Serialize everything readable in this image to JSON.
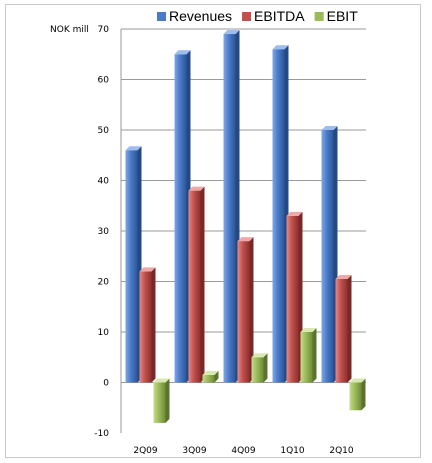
{
  "chart_data": {
    "type": "bar",
    "unit_label": "NOK mill",
    "categories": [
      "2Q09",
      "3Q09",
      "4Q09",
      "1Q10",
      "2Q10"
    ],
    "series": [
      {
        "name": "Revenues",
        "values": [
          46,
          65,
          69,
          66,
          50
        ],
        "color": "#4a7bc8"
      },
      {
        "name": "EBITDA",
        "values": [
          22,
          38,
          28,
          33,
          20.5
        ],
        "color": "#c0504d"
      },
      {
        "name": "EBIT",
        "values": [
          -8,
          1.5,
          5,
          10,
          -5.5
        ],
        "color": "#9bbb59"
      }
    ],
    "ylim": [
      -10,
      70
    ],
    "yticks": [
      -10,
      0,
      10,
      20,
      30,
      40,
      50,
      60,
      70
    ],
    "grid": true,
    "legend_position": "top"
  }
}
